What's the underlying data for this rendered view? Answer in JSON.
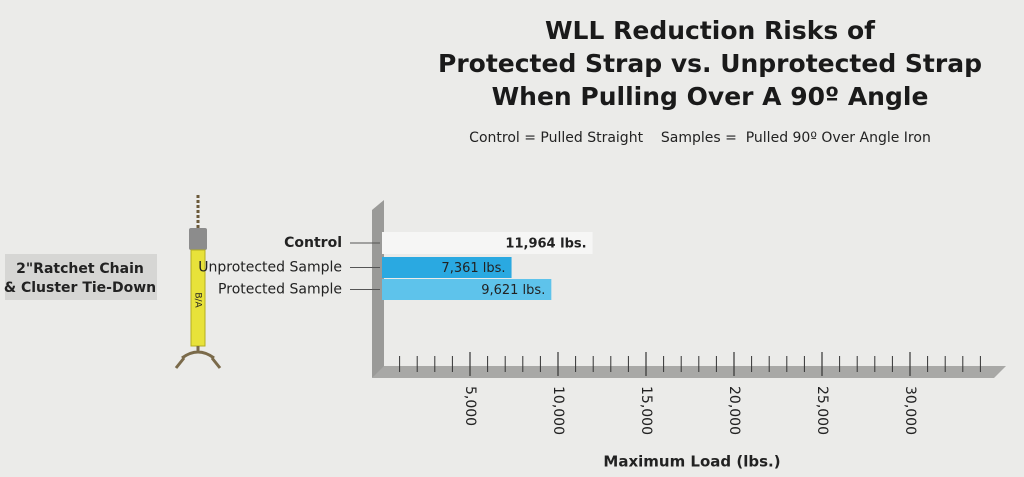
{
  "chart_data": {
    "type": "barh",
    "title": [
      "WLL Reduction Risks of",
      "Protected Strap vs. Unprotected Strap",
      "When Pulling Over A 90º Angle"
    ],
    "subtitle": "Control = Pulled Straight    Samples =  Pulled 90º Over Angle Iron",
    "product_label": [
      "2\"Ratchet Chain",
      "& Cluster Tie-Down"
    ],
    "categories": [
      "Control",
      "Unprotected Sample",
      "Protected Sample"
    ],
    "values": [
      11964,
      7361,
      9621
    ],
    "value_labels": [
      "11,964 lbs.",
      "7,361 lbs.",
      "9,621 lbs."
    ],
    "colors": [
      "#f6f6f5",
      "#2aa9e1",
      "#5ec3eb"
    ],
    "xlabel": "Maximum Load (lbs.)",
    "xlim": [
      0,
      35000
    ],
    "xticks": [
      {
        "value": 5000,
        "label": "5,000"
      },
      {
        "value": 10000,
        "label": "10,000"
      },
      {
        "value": 15000,
        "label": "15,000"
      },
      {
        "value": 20000,
        "label": "20,000"
      },
      {
        "value": 25000,
        "label": "25,000"
      },
      {
        "value": 30000,
        "label": "30,000"
      }
    ],
    "xminor_ticks": [
      1000,
      2000,
      3000,
      4000,
      5000,
      6000,
      7000,
      8000,
      9000,
      10000,
      11000,
      12000,
      13000,
      14000,
      15000,
      16000,
      17000,
      18000,
      19000,
      20000,
      21000,
      22000,
      23000,
      24000,
      25000,
      26000,
      27000,
      28000,
      29000,
      30000,
      31000,
      32000,
      33000,
      34000
    ]
  }
}
